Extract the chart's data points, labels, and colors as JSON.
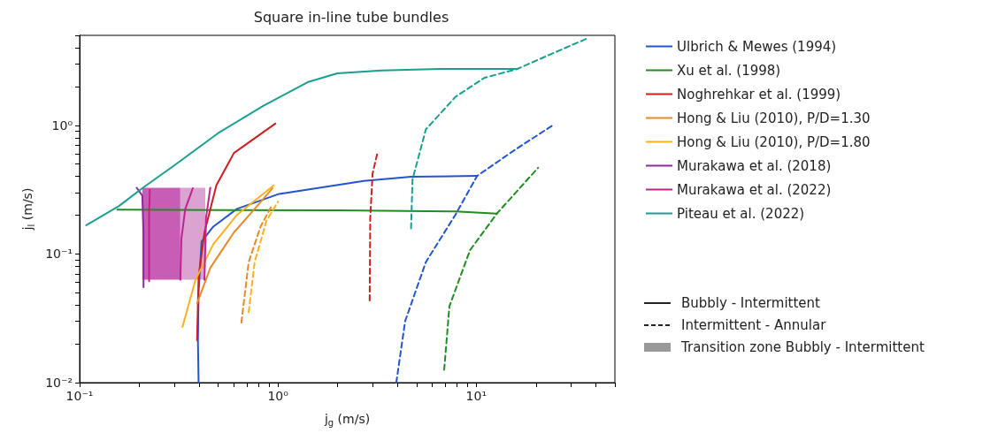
{
  "chart_data": {
    "type": "line",
    "title": "Square in-line tube bundles",
    "xlabel": "j$_{g}$ (m/s)",
    "ylabel": "j$_{l}$ (m/s)",
    "log": "xy",
    "grid": false,
    "legend": "right",
    "marker": "none",
    "xlim": [
      0.1,
      50
    ],
    "ylim": [
      0.01,
      5
    ],
    "xticks": [
      {
        "value": 0.1,
        "label": "10⁻¹"
      },
      {
        "value": 0.2,
        "label": null
      },
      {
        "value": 0.3,
        "label": null
      },
      {
        "value": 0.4,
        "label": null
      },
      {
        "value": 0.5,
        "label": null
      },
      {
        "value": 0.6,
        "label": null
      },
      {
        "value": 0.7,
        "label": null
      },
      {
        "value": 0.8,
        "label": null
      },
      {
        "value": 0.9,
        "label": null
      },
      {
        "value": 1,
        "label": "10⁰"
      },
      {
        "value": 2,
        "label": null
      },
      {
        "value": 3,
        "label": null
      },
      {
        "value": 4,
        "label": null
      },
      {
        "value": 5,
        "label": null
      },
      {
        "value": 6,
        "label": null
      },
      {
        "value": 7,
        "label": null
      },
      {
        "value": 8,
        "label": null
      },
      {
        "value": 9,
        "label": null
      },
      {
        "value": 10,
        "label": "10¹"
      },
      {
        "value": 20,
        "label": null
      },
      {
        "value": 30,
        "label": null
      },
      {
        "value": 40,
        "label": null
      },
      {
        "value": 50,
        "label": null
      }
    ],
    "yticks": [
      {
        "value": 0.01,
        "label": "10⁻²"
      },
      {
        "value": 0.02,
        "label": null
      },
      {
        "value": 0.03,
        "label": null
      },
      {
        "value": 0.04,
        "label": null
      },
      {
        "value": 0.05,
        "label": null
      },
      {
        "value": 0.06,
        "label": null
      },
      {
        "value": 0.07,
        "label": null
      },
      {
        "value": 0.08,
        "label": null
      },
      {
        "value": 0.09,
        "label": null
      },
      {
        "value": 0.1,
        "label": "10⁻¹"
      },
      {
        "value": 0.2,
        "label": null
      },
      {
        "value": 0.3,
        "label": null
      },
      {
        "value": 0.4,
        "label": null
      },
      {
        "value": 0.5,
        "label": null
      },
      {
        "value": 0.6,
        "label": null
      },
      {
        "value": 0.7,
        "label": null
      },
      {
        "value": 0.8,
        "label": null
      },
      {
        "value": 0.9,
        "label": null
      },
      {
        "value": 1,
        "label": "10⁰"
      },
      {
        "value": 2,
        "label": null
      },
      {
        "value": 3,
        "label": null
      },
      {
        "value": 4,
        "label": null
      },
      {
        "value": 5,
        "label": null
      }
    ],
    "annotations": [
      "Bubbly - Intermittent",
      "Intermittent - Annular",
      "Transition zone Bubbly - Intermittent"
    ],
    "series": [
      {
        "color": "#c75db5",
        "x": [
          0.207,
          0.322
        ],
        "values": [
          null,
          null
        ],
        "lower": [
          0.063,
          0.063
        ],
        "upper": [
          0.327,
          0.327
        ]
      },
      {
        "color": "#dba3d2",
        "x": [
          0.322,
          0.43
        ],
        "values": [
          null,
          null
        ],
        "lower": [
          0.063,
          0.063
        ],
        "upper": [
          0.327,
          0.327
        ]
      },
      {
        "name": "Ulbrich & Mewes (1994)",
        "color": "#2255cc",
        "line_style": "solid",
        "x": [
          0.398,
          0.395,
          0.398,
          0.412,
          0.472,
          0.621,
          1.0,
          2.71,
          4.69,
          10.1
        ],
        "values": [
          0.01,
          0.0208,
          0.051,
          0.125,
          0.163,
          0.224,
          0.291,
          0.369,
          0.399,
          0.404
        ]
      },
      {
        "color": "#2255cc",
        "line_style": "dashed",
        "x": [
          3.95,
          4.38,
          5.57,
          7.84,
          10.1,
          15.6,
          24.3
        ],
        "values": [
          0.01,
          0.0301,
          0.0865,
          0.201,
          0.404,
          0.642,
          1.0
        ]
      },
      {
        "name": "Xu et al. (1998)",
        "color": "#228b22",
        "line_style": "solid",
        "x": [
          0.155,
          1.99,
          7.84,
          12.7
        ],
        "values": [
          0.221,
          0.218,
          0.214,
          0.206
        ]
      },
      {
        "color": "#228b22",
        "line_style": "dashed",
        "x": [
          6.89,
          7.32,
          9.3,
          12.7,
          20.5
        ],
        "values": [
          0.0126,
          0.0392,
          0.107,
          0.206,
          0.468
        ]
      },
      {
        "name": "Noghrehkar et al. (1999)",
        "color": "#cc1f1f",
        "line_style": "solid",
        "x": [
          0.391,
          0.398,
          0.426,
          0.489,
          0.6,
          0.97
        ],
        "values": [
          0.0214,
          0.0665,
          0.147,
          0.341,
          0.609,
          1.03
        ]
      },
      {
        "color": "#cc1f1f",
        "line_style": "dashed",
        "x": [
          2.9,
          2.92,
          3.0,
          3.16
        ],
        "values": [
          0.0436,
          0.191,
          0.421,
          0.593
        ]
      },
      {
        "name": "Hong & Liu (2010), P/D=1.30",
        "color": "#e8892a",
        "line_style": "solid",
        "x": [
          0.391,
          0.456,
          0.6,
          0.763,
          0.938
        ],
        "values": [
          0.0413,
          0.078,
          0.147,
          0.224,
          0.324
        ]
      },
      {
        "color": "#e8892a",
        "line_style": "dashed",
        "x": [
          0.654,
          0.712,
          0.817,
          0.921
        ],
        "values": [
          0.0293,
          0.0865,
          0.163,
          0.23
        ]
      },
      {
        "name": "Hong & Liu (2010), P/D=1.80",
        "color": "#ffb020",
        "line_style": "solid",
        "x": [
          0.33,
          0.384,
          0.472,
          0.621,
          0.953
        ],
        "values": [
          0.0271,
          0.063,
          0.119,
          0.201,
          0.341
        ]
      },
      {
        "color": "#ffb020",
        "line_style": "dashed",
        "x": [
          0.712,
          0.763,
          0.875,
          1.0
        ],
        "values": [
          0.0353,
          0.0865,
          0.181,
          0.255
        ]
      },
      {
        "name": "Murakawa et al. (2018)",
        "color": "#8b2a9b",
        "line_style": "solid",
        "x": [
          0.194,
          0.207,
          0.21,
          0.21
        ],
        "values": [
          0.327,
          0.284,
          0.147,
          0.0552
        ]
      },
      {
        "name": "Murakawa et al. (2022)",
        "color": "#c0228e",
        "line_style": "solid",
        "x": [
          0.226,
          0.224,
          0.224
        ],
        "values": [
          0.315,
          0.2,
          0.0614
        ]
      },
      {
        "color": "#c0228e",
        "line_style": "solid",
        "x": [
          0.372,
          0.341,
          0.326,
          0.322
        ],
        "values": [
          0.324,
          0.224,
          0.132,
          0.063
        ]
      },
      {
        "color": "#c0228e",
        "line_style": "solid",
        "x": [
          0.456,
          0.434,
          0.426
        ],
        "values": [
          0.327,
          0.191,
          0.063
        ]
      },
      {
        "name": "Piteau et al. (2022)",
        "color": "#1a9e8f",
        "line_style": "solid",
        "x": [
          0.108,
          0.158,
          0.207,
          0.303,
          0.506,
          0.846,
          1.41,
          1.99,
          3.33,
          6.61,
          16.1
        ],
        "values": [
          0.167,
          0.236,
          0.324,
          0.493,
          0.881,
          1.42,
          2.16,
          2.53,
          2.67,
          2.74,
          2.74
        ]
      },
      {
        "color": "#1a9e8f",
        "line_style": "dashed",
        "x": [
          4.69,
          4.77,
          5.57,
          7.84,
          11.0,
          16.1,
          21.9,
          36.0
        ],
        "values": [
          0.158,
          0.379,
          0.929,
          1.66,
          2.34,
          2.74,
          3.38,
          4.71
        ]
      }
    ]
  }
}
